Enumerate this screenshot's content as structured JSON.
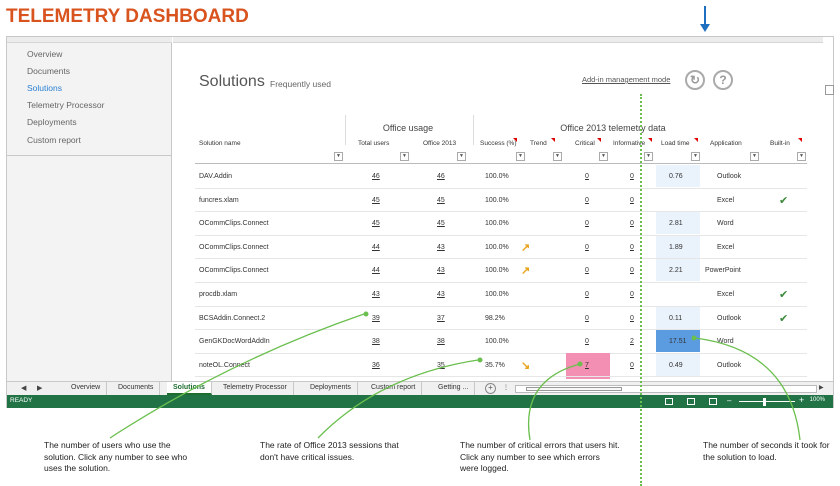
{
  "title": "TELEMETRY DASHBOARD",
  "sidebar": {
    "items": [
      {
        "label": "Overview",
        "active": false
      },
      {
        "label": "Documents",
        "active": false
      },
      {
        "label": "Solutions",
        "active": true
      },
      {
        "label": "Telemetry Processor",
        "active": false
      },
      {
        "label": "Deployments",
        "active": false
      },
      {
        "label": "Custom report",
        "active": false
      }
    ]
  },
  "main": {
    "heading": "Solutions",
    "subheading": "Frequently used",
    "addin_link": "Add-in management mode",
    "refresh_icon": "refresh-icon",
    "help_icon": "help-icon",
    "group_office_usage": "Office usage",
    "group_telemetry": "Office 2013 telemetry data",
    "columns": [
      "Solution name",
      "Total users",
      "Office 2013",
      "Success (%)",
      "Trend",
      "Critical",
      "Informative",
      "Load time",
      "Application",
      "Built-in"
    ]
  },
  "rows": [
    {
      "name": "DAV.Addin",
      "total": "46",
      "office2013": "46",
      "success": "100.0%",
      "trend": "",
      "critical": "0",
      "informative": "0",
      "load": "0.76",
      "app": "Outlook",
      "builtin": false
    },
    {
      "name": "funcres.xlam",
      "total": "45",
      "office2013": "45",
      "success": "100.0%",
      "trend": "",
      "critical": "0",
      "informative": "0",
      "load": "",
      "app": "Excel",
      "builtin": true
    },
    {
      "name": "OCommClips.Connect",
      "total": "45",
      "office2013": "45",
      "success": "100.0%",
      "trend": "",
      "critical": "0",
      "informative": "0",
      "load": "2.81",
      "app": "Word",
      "builtin": false
    },
    {
      "name": "OCommClips.Connect",
      "total": "44",
      "office2013": "43",
      "success": "100.0%",
      "trend": "up",
      "critical": "0",
      "informative": "0",
      "load": "1.89",
      "app": "Excel",
      "builtin": false
    },
    {
      "name": "OCommClips.Connect",
      "total": "44",
      "office2013": "43",
      "success": "100.0%",
      "trend": "up",
      "critical": "0",
      "informative": "0",
      "load": "2.21",
      "app": "PowerPoint",
      "builtin": false
    },
    {
      "name": "procdb.xlam",
      "total": "43",
      "office2013": "43",
      "success": "100.0%",
      "trend": "",
      "critical": "0",
      "informative": "0",
      "load": "",
      "app": "Excel",
      "builtin": true
    },
    {
      "name": "BCSAddin.Connect.2",
      "total": "39",
      "office2013": "37",
      "success": "98.2%",
      "trend": "",
      "critical": "0",
      "informative": "0",
      "load": "0.11",
      "app": "Outlook",
      "builtin": true
    },
    {
      "name": "GenGKDocWordAddIn",
      "total": "38",
      "office2013": "38",
      "success": "100.0%",
      "trend": "",
      "critical": "0",
      "informative": "2",
      "load": "17.51",
      "app": "Word",
      "builtin": false
    },
    {
      "name": "noteOL.Connect",
      "total": "36",
      "office2013": "35",
      "success": "35.7%",
      "trend": "down",
      "critical": "7",
      "informative": "0",
      "load": "0.49",
      "app": "Outlook",
      "builtin": false
    }
  ],
  "sheet_tabs": [
    "Overview",
    "Documents",
    "Solutions",
    "Telemetry Processor",
    "Deployments",
    "Custom report",
    "Getting ..."
  ],
  "status": {
    "ready": "READY",
    "zoom": "100%"
  },
  "callouts": [
    "The number of users who use the solution. Click any number to see who uses the solution.",
    "The rate of Office 2013 sessions that don't have critical issues.",
    "The number of critical errors that users hit. Click any number to see which errors were logged.",
    "The number of seconds it took for the solution to load."
  ],
  "colors": {
    "title": "#d9531e",
    "status_bar": "#217346",
    "accent_link": "#2a7fd4",
    "critical_highlight": "#f28fb2",
    "load_highlight": "#5b9be0",
    "callout_line": "#6bbf4e"
  }
}
